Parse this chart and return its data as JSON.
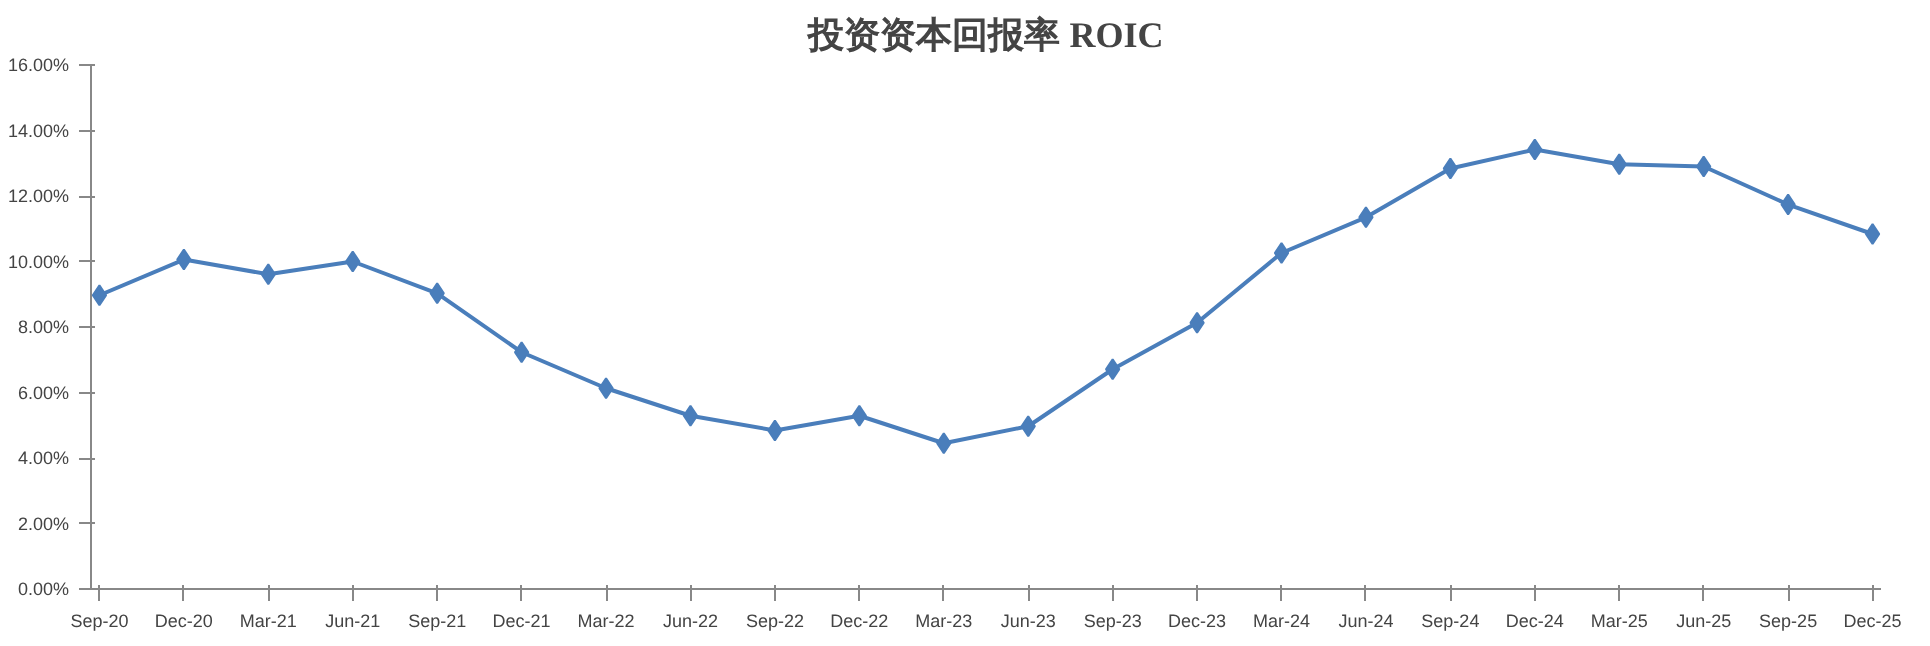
{
  "chart_data": {
    "type": "line",
    "title": "投资资本回报率 ROIC",
    "categories": [
      "Sep-20",
      "Dec-20",
      "Mar-21",
      "Jun-21",
      "Sep-21",
      "Dec-21",
      "Mar-22",
      "Jun-22",
      "Sep-22",
      "Dec-22",
      "Mar-23",
      "Jun-23",
      "Sep-23",
      "Dec-23",
      "Mar-24",
      "Jun-24",
      "Sep-24",
      "Dec-24",
      "Mar-25",
      "Jun-25",
      "Sep-25",
      "Dec-25"
    ],
    "series": [
      {
        "color": "#4a7ebb",
        "values": [
          8.97,
          10.06,
          9.61,
          10.0,
          9.03,
          7.23,
          6.13,
          5.29,
          4.84,
          5.29,
          4.45,
          4.97,
          6.71,
          8.13,
          10.26,
          11.35,
          12.84,
          13.42,
          12.97,
          12.9,
          11.74,
          10.84
        ]
      }
    ],
    "ylim": [
      0,
      16
    ],
    "yticks": [
      {
        "value": 0,
        "label": "0.00%"
      },
      {
        "value": 2,
        "label": "2.00%"
      },
      {
        "value": 4,
        "label": "4.00%"
      },
      {
        "value": 6,
        "label": "6.00%"
      },
      {
        "value": 8,
        "label": "8.00%"
      },
      {
        "value": 10,
        "label": "10.00%"
      },
      {
        "value": 12,
        "label": "12.00%"
      },
      {
        "value": 14,
        "label": "14.00%"
      },
      {
        "value": 16,
        "label": "16.00%"
      }
    ],
    "marker": "diamond",
    "line_style": "solid",
    "grid": false
  }
}
